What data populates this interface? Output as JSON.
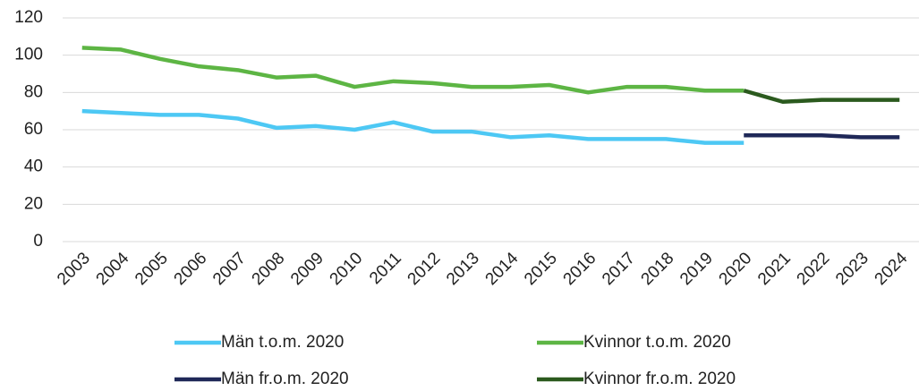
{
  "chart_data": {
    "type": "line",
    "categories": [
      "2003",
      "2004",
      "2005",
      "2006",
      "2007",
      "2008",
      "2009",
      "2010",
      "2011",
      "2012",
      "2013",
      "2014",
      "2015",
      "2016",
      "2017",
      "2018",
      "2019",
      "2020",
      "2021",
      "2022",
      "2023",
      "2024"
    ],
    "series": [
      {
        "name": "Män t.o.m. 2020",
        "color": "#4dc8f4",
        "values": [
          70,
          69,
          68,
          68,
          66,
          61,
          62,
          60,
          64,
          59,
          59,
          56,
          57,
          55,
          55,
          55,
          53,
          53,
          null,
          null,
          null,
          null
        ]
      },
      {
        "name": "Kvinnor t.o.m. 2020",
        "color": "#5db544",
        "values": [
          104,
          103,
          98,
          94,
          92,
          88,
          89,
          83,
          86,
          85,
          83,
          83,
          84,
          80,
          83,
          83,
          81,
          81,
          null,
          null,
          null,
          null
        ]
      },
      {
        "name": "Män fr.o.m. 2020",
        "color": "#1f2858",
        "values": [
          null,
          null,
          null,
          null,
          null,
          null,
          null,
          null,
          null,
          null,
          null,
          null,
          null,
          null,
          null,
          null,
          null,
          57,
          57,
          57,
          56,
          56
        ]
      },
      {
        "name": "Kvinnor fr.o.m. 2020",
        "color": "#2b5a1e",
        "values": [
          null,
          null,
          null,
          null,
          null,
          null,
          null,
          null,
          null,
          null,
          null,
          null,
          null,
          null,
          null,
          null,
          null,
          81,
          75,
          76,
          76,
          76
        ]
      }
    ],
    "ylim": [
      0,
      120
    ],
    "yticks": [
      0,
      20,
      40,
      60,
      80,
      100,
      120
    ],
    "grid": true
  }
}
